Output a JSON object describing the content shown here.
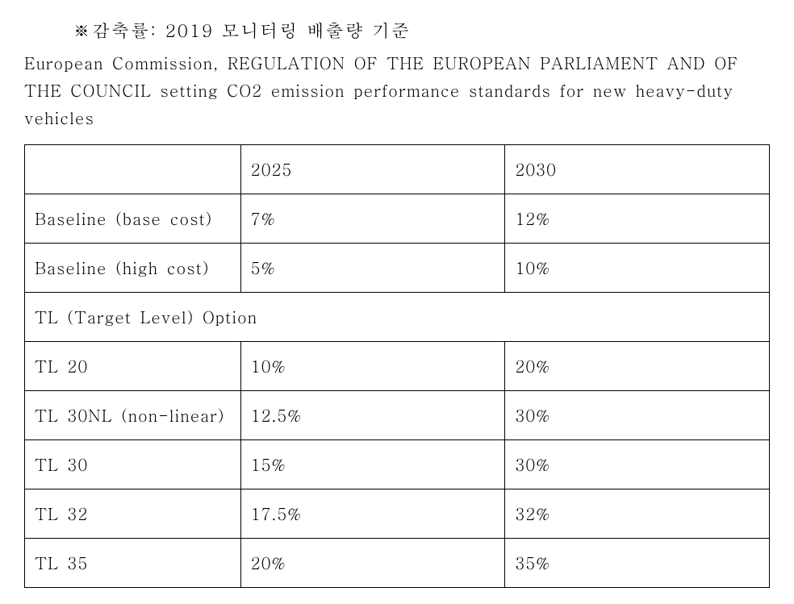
{
  "header_note": "※감축률: 2019 모니터링 배출량 기준",
  "sub_note": "European Commission, REGULATION OF THE EUROPEAN PARLIAMENT AND OF THE COUNCIL setting CO2 emission performance standards for new heavy-duty vehicles",
  "table": {
    "columns": [
      "",
      "2025",
      "2030"
    ],
    "rows_top": [
      {
        "label": "Baseline (base cost)",
        "y2025": "7%",
        "y2030": "12%"
      },
      {
        "label": "Baseline (high cost)",
        "y2025": "5%",
        "y2030": "10%"
      }
    ],
    "section_label": "TL (Target Level) Option",
    "rows_bottom": [
      {
        "label": "TL 20",
        "y2025": "10%",
        "y2030": "20%"
      },
      {
        "label": "TL 30NL (non-linear)",
        "y2025": "12.5%",
        "y2030": "30%"
      },
      {
        "label": "TL 30",
        "y2025": "15%",
        "y2030": "30%"
      },
      {
        "label": "TL 32",
        "y2025": "17.5%",
        "y2030": "32%"
      },
      {
        "label": "TL 35",
        "y2025": "20%",
        "y2030": "35%"
      }
    ],
    "border_color": "#000000",
    "background_color": "#ffffff",
    "text_color": "#000000",
    "font_size": 20,
    "col_widths_pct": [
      29,
      35.5,
      35.5
    ]
  }
}
